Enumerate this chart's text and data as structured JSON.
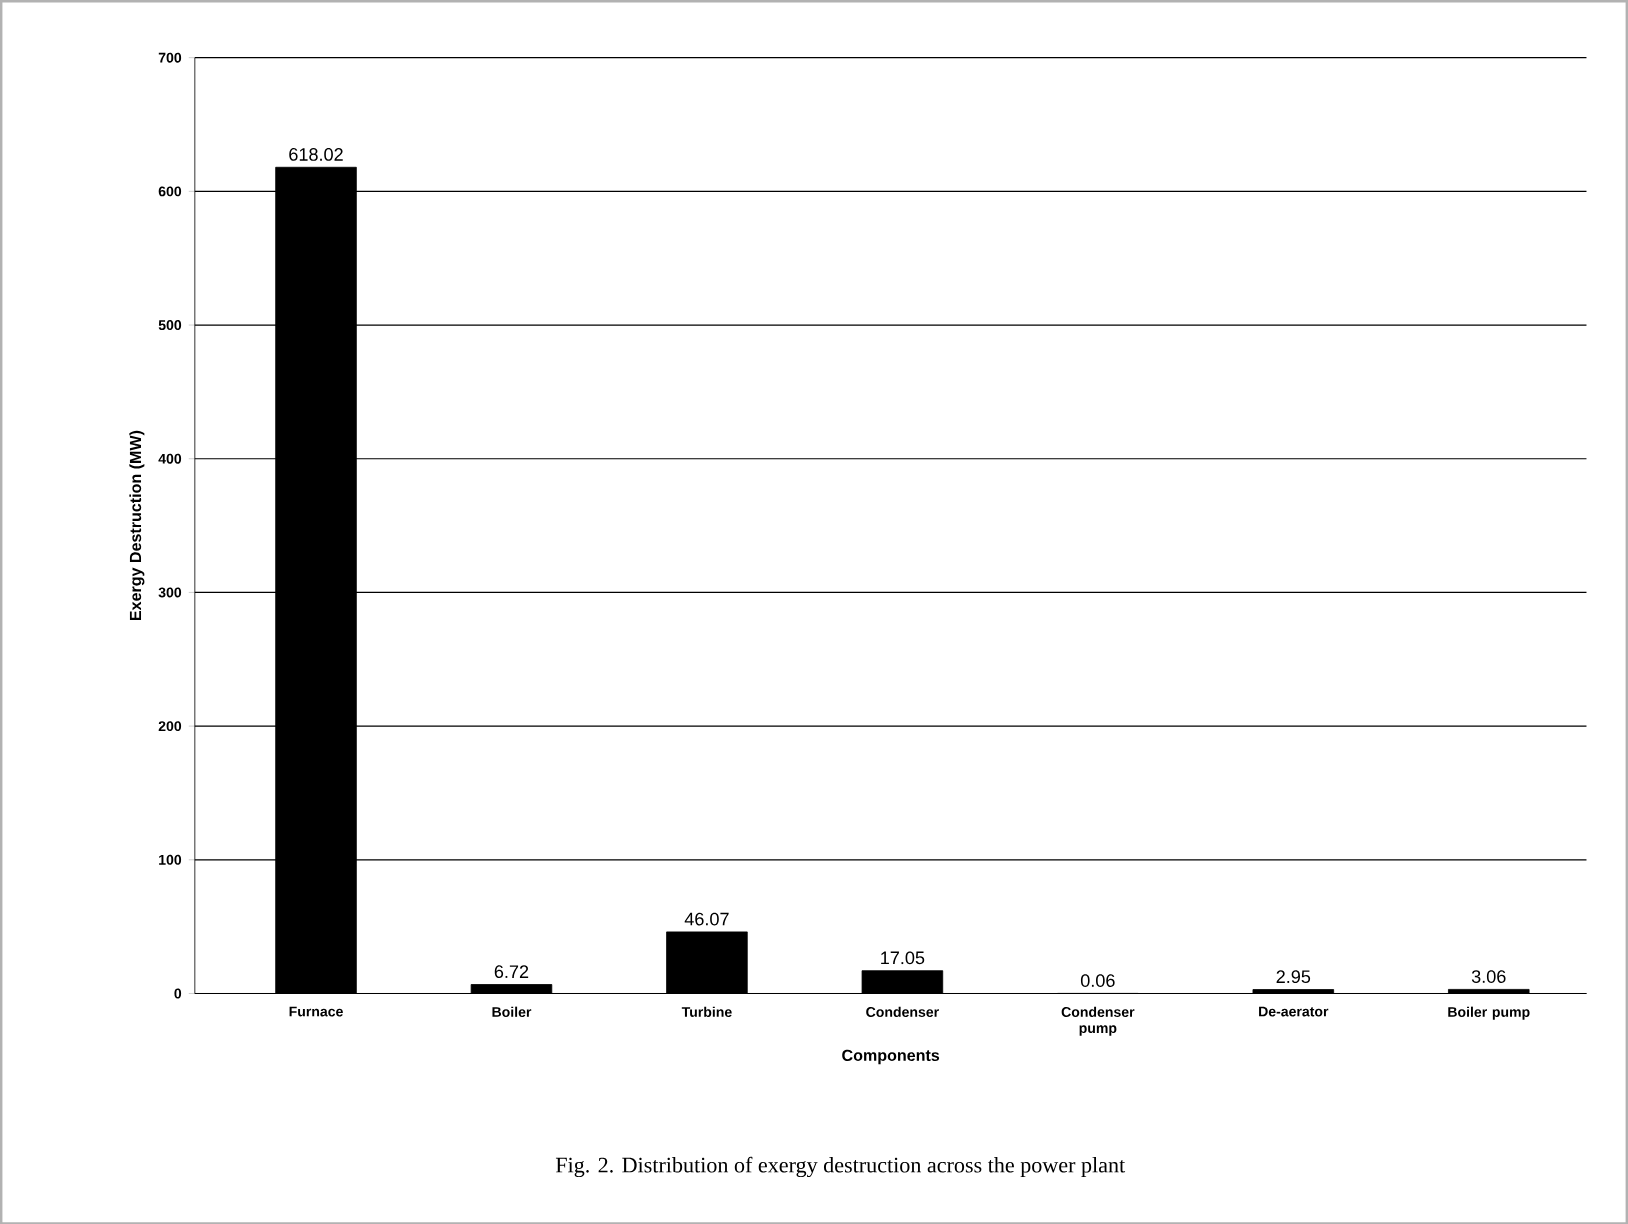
{
  "chart_data": {
    "type": "bar",
    "categories": [
      "Furnace",
      "Boiler",
      "Turbine",
      "Condenser",
      "Condenser pump",
      "De-aerator",
      "Boiler pump"
    ],
    "values": [
      618.02,
      6.72,
      46.07,
      17.05,
      0.06,
      2.95,
      3.06
    ],
    "color": "#000000",
    "data_labels": true,
    "xlabel": "Components",
    "ylabel": "Exergy Destruction  (MW)",
    "ylim": [
      0,
      700
    ],
    "yticks": [
      0,
      100,
      200,
      300,
      400,
      500,
      600,
      700
    ],
    "grid": "y",
    "annotations": [
      "Fig. 2. Distribution of exergy destruction across the power plant"
    ]
  }
}
